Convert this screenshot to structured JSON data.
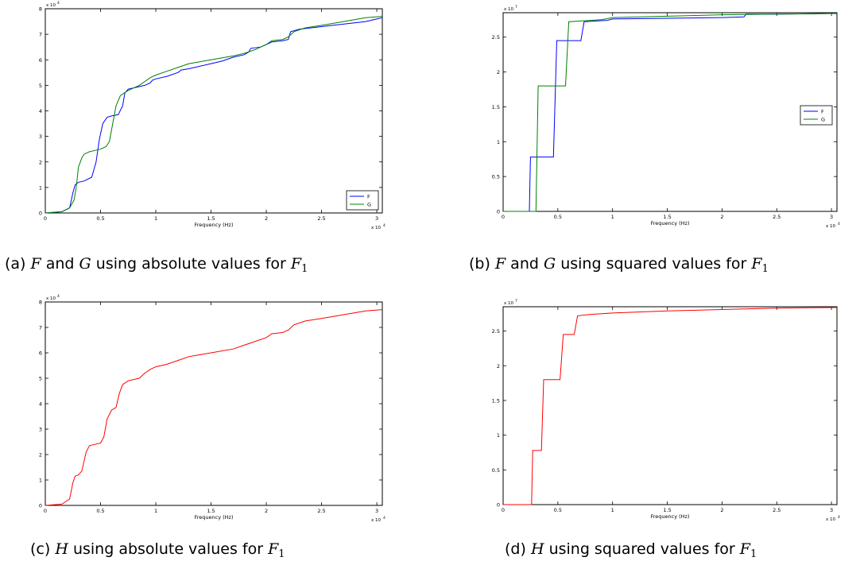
{
  "captions": {
    "a": {
      "label": "(a)",
      "v1": "F",
      "and": "and",
      "v2": "G",
      "rest": "using absolute values for",
      "var": "F",
      "sub": "1"
    },
    "b": {
      "label": "(b)",
      "v1": "F",
      "and": "and",
      "v2": "G",
      "rest": "using squared values for",
      "var": "F",
      "sub": "1"
    },
    "c": {
      "label": "(c)",
      "v1": "H",
      "rest": "using absolute values for",
      "var": "F",
      "sub": "1"
    },
    "d": {
      "label": "(d)",
      "v1": "H",
      "rest": "using squared values for",
      "var": "F",
      "sub": "1"
    }
  },
  "chart_data": [
    {
      "id": "a",
      "type": "line",
      "xlabel": "Frequency (Hz)",
      "x_multiplier": "x 10",
      "x_exponent": "4",
      "y_multiplier": "x 10",
      "y_exponent": "4",
      "xlim": [
        0,
        3.05
      ],
      "ylim": [
        0,
        8
      ],
      "xticks": [
        "0",
        "0.5",
        "1",
        "1.5",
        "2",
        "2.5",
        "3"
      ],
      "xtick_values": [
        0,
        0.5,
        1,
        1.5,
        2,
        2.5,
        3
      ],
      "yticks": [
        "0",
        "1",
        "2",
        "3",
        "4",
        "5",
        "6",
        "7",
        "8"
      ],
      "ytick_values": [
        0,
        1,
        2,
        3,
        4,
        5,
        6,
        7,
        8
      ],
      "legend_position": "bottom-right",
      "series": [
        {
          "name": "F",
          "color": "#0000ff",
          "x": [
            0,
            0.15,
            0.22,
            0.25,
            0.27,
            0.3,
            0.35,
            0.42,
            0.46,
            0.49,
            0.52,
            0.56,
            0.6,
            0.66,
            0.7,
            0.72,
            0.75,
            0.8,
            0.9,
            0.95,
            0.97,
            1.0,
            1.1,
            1.2,
            1.23,
            1.3,
            1.5,
            1.6,
            1.7,
            1.8,
            1.84,
            1.86,
            1.95,
            2.0,
            2.05,
            2.15,
            2.2,
            2.22,
            2.3,
            2.5,
            2.6,
            2.8,
            2.9,
            3.0,
            3.05
          ],
          "y": [
            0,
            0.05,
            0.2,
            0.8,
            1.1,
            1.2,
            1.25,
            1.4,
            2.0,
            2.9,
            3.5,
            3.75,
            3.8,
            3.85,
            4.2,
            4.7,
            4.85,
            4.9,
            5.0,
            5.1,
            5.2,
            5.25,
            5.35,
            5.5,
            5.6,
            5.65,
            5.85,
            5.95,
            6.1,
            6.2,
            6.3,
            6.45,
            6.5,
            6.6,
            6.7,
            6.75,
            6.8,
            7.1,
            7.2,
            7.3,
            7.35,
            7.45,
            7.5,
            7.6,
            7.65
          ]
        },
        {
          "name": "G",
          "color": "#008000",
          "x": [
            0,
            0.15,
            0.22,
            0.26,
            0.28,
            0.3,
            0.33,
            0.35,
            0.4,
            0.45,
            0.5,
            0.55,
            0.58,
            0.61,
            0.64,
            0.68,
            0.75,
            0.85,
            0.9,
            0.95,
            1.0,
            1.1,
            1.2,
            1.3,
            1.5,
            1.7,
            1.8,
            1.9,
            2.0,
            2.05,
            2.15,
            2.2,
            2.25,
            2.35,
            2.5,
            2.7,
            2.9,
            3.05
          ],
          "y": [
            0,
            0.05,
            0.2,
            0.5,
            1.0,
            1.8,
            2.15,
            2.3,
            2.4,
            2.45,
            2.5,
            2.6,
            2.8,
            3.5,
            4.2,
            4.6,
            4.8,
            5.0,
            5.15,
            5.3,
            5.4,
            5.55,
            5.7,
            5.85,
            6.0,
            6.15,
            6.25,
            6.4,
            6.6,
            6.75,
            6.8,
            6.9,
            7.1,
            7.25,
            7.35,
            7.5,
            7.65,
            7.7
          ]
        }
      ]
    },
    {
      "id": "b",
      "type": "line",
      "xlabel": "Frequency (Hz)",
      "x_multiplier": "x 10",
      "x_exponent": "4",
      "y_multiplier": "x 10",
      "y_exponent": "7",
      "xlim": [
        0,
        3.05
      ],
      "ylim": [
        0,
        2.85
      ],
      "xticks": [
        "0",
        "0.5",
        "1",
        "1.5",
        "2",
        "2.5",
        "3"
      ],
      "xtick_values": [
        0,
        0.5,
        1,
        1.5,
        2,
        2.5,
        3
      ],
      "yticks": [
        "0",
        "0.5",
        "1",
        "1.5",
        "2",
        "2.5"
      ],
      "ytick_values": [
        0,
        0.5,
        1,
        1.5,
        2,
        2.5
      ],
      "legend_position": "right",
      "series": [
        {
          "name": "F",
          "color": "#0000ff",
          "x": [
            0,
            0.24,
            0.25,
            0.46,
            0.49,
            0.71,
            0.74,
            0.95,
            1.0,
            1.5,
            2.0,
            2.2,
            2.22,
            2.5,
            3.05
          ],
          "y": [
            0,
            0,
            0.78,
            0.78,
            2.45,
            2.45,
            2.72,
            2.74,
            2.76,
            2.77,
            2.78,
            2.79,
            2.83,
            2.83,
            2.84
          ]
        },
        {
          "name": "G",
          "color": "#008000",
          "x": [
            0,
            0.3,
            0.32,
            0.57,
            0.6,
            0.9,
            1.0,
            1.5,
            2.0,
            2.5,
            3.05
          ],
          "y": [
            0,
            0,
            1.8,
            1.8,
            2.72,
            2.75,
            2.78,
            2.8,
            2.82,
            2.83,
            2.84
          ]
        }
      ]
    },
    {
      "id": "c",
      "type": "line",
      "xlabel": "Frequency (Hz)",
      "x_multiplier": "x 10",
      "x_exponent": "4",
      "y_multiplier": "x 10",
      "y_exponent": "4",
      "xlim": [
        0,
        3.05
      ],
      "ylim": [
        0,
        8
      ],
      "xticks": [
        "0",
        "0.5",
        "1",
        "1.5",
        "2",
        "2.5",
        "3"
      ],
      "xtick_values": [
        0,
        0.5,
        1,
        1.5,
        2,
        2.5,
        3
      ],
      "yticks": [
        "0",
        "1",
        "2",
        "3",
        "4",
        "5",
        "6",
        "7",
        "8"
      ],
      "ytick_values": [
        0,
        1,
        2,
        3,
        4,
        5,
        6,
        7,
        8
      ],
      "legend_position": "",
      "series": [
        {
          "color": "#ff0000",
          "x": [
            0,
            0.15,
            0.22,
            0.25,
            0.27,
            0.3,
            0.33,
            0.37,
            0.4,
            0.45,
            0.5,
            0.53,
            0.56,
            0.6,
            0.64,
            0.67,
            0.7,
            0.75,
            0.85,
            0.9,
            0.95,
            1.0,
            1.1,
            1.2,
            1.3,
            1.5,
            1.7,
            1.8,
            1.9,
            2.0,
            2.05,
            2.15,
            2.2,
            2.25,
            2.35,
            2.5,
            2.7,
            2.9,
            3.05
          ],
          "y": [
            0,
            0.05,
            0.25,
            0.9,
            1.15,
            1.2,
            1.35,
            2.1,
            2.35,
            2.4,
            2.45,
            2.7,
            3.4,
            3.75,
            3.85,
            4.4,
            4.75,
            4.9,
            5.0,
            5.2,
            5.35,
            5.45,
            5.55,
            5.7,
            5.85,
            6.0,
            6.15,
            6.3,
            6.45,
            6.6,
            6.75,
            6.8,
            6.9,
            7.1,
            7.25,
            7.35,
            7.5,
            7.65,
            7.7
          ]
        }
      ]
    },
    {
      "id": "d",
      "type": "line",
      "xlabel": "Frequency (Hz)",
      "x_multiplier": "x 10",
      "x_exponent": "4",
      "y_multiplier": "x 10",
      "y_exponent": "7",
      "xlim": [
        0,
        3.05
      ],
      "ylim": [
        0,
        2.85
      ],
      "xticks": [
        "0",
        "0.5",
        "1",
        "1.5",
        "2",
        "2.5",
        "3"
      ],
      "xtick_values": [
        0,
        0.5,
        1,
        1.5,
        2,
        2.5,
        3
      ],
      "yticks": [
        "0",
        "0.5",
        "1",
        "1.5",
        "2",
        "2.5"
      ],
      "ytick_values": [
        0,
        0.5,
        1,
        1.5,
        2,
        2.5
      ],
      "legend_position": "",
      "series": [
        {
          "color": "#ff0000",
          "x": [
            0,
            0.26,
            0.27,
            0.35,
            0.37,
            0.52,
            0.55,
            0.65,
            0.68,
            0.8,
            1.0,
            1.5,
            2.0,
            2.5,
            3.05
          ],
          "y": [
            0,
            0,
            0.78,
            0.78,
            1.8,
            1.8,
            2.45,
            2.45,
            2.72,
            2.74,
            2.76,
            2.79,
            2.81,
            2.83,
            2.84
          ]
        }
      ]
    }
  ]
}
